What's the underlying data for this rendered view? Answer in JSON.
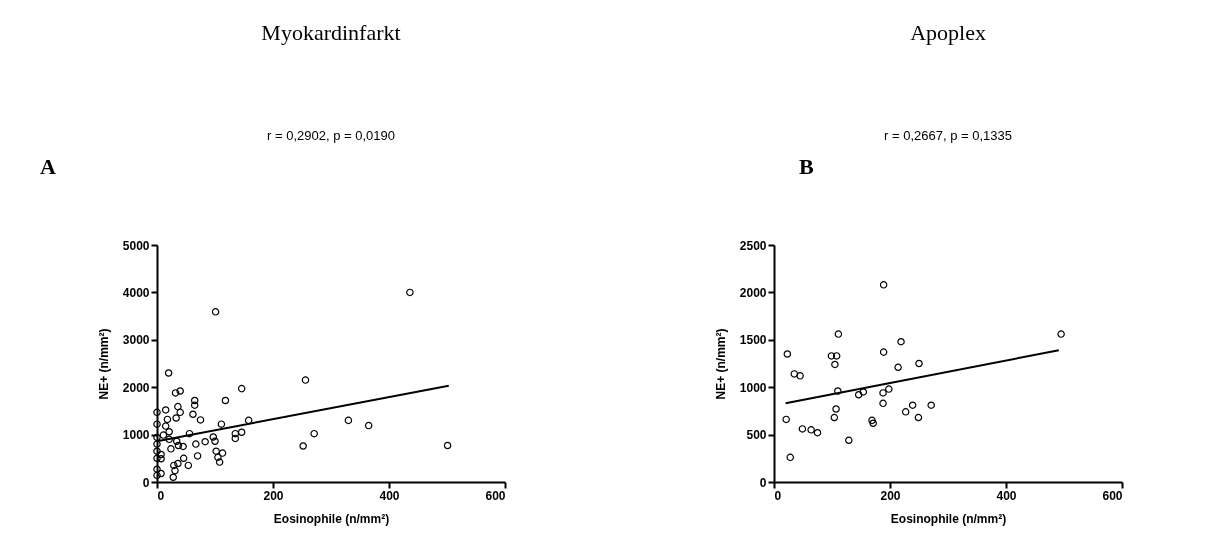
{
  "chart_data": [
    {
      "type": "scatter",
      "title": "Myokardinfarkt",
      "subtitle": "r = 0,2902, p = 0,0190",
      "annotations": [
        "A"
      ],
      "xlabel": "Eosinophile (n/mm²)",
      "ylabel": "NE+ (n/mm²)",
      "xlim": [
        0,
        600
      ],
      "ylim": [
        0,
        5000
      ],
      "xticks": [
        0,
        200,
        400,
        600
      ],
      "yticks": [
        0,
        1000,
        2000,
        3000,
        4000,
        5000
      ],
      "grid": false,
      "series": [
        {
          "marker": "circle",
          "color": "#000000",
          "x": [
            436,
            101,
            20,
            256,
            146,
            40,
            32,
            65,
            118,
            65,
            36,
            15,
            0,
            40,
            62,
            18,
            75,
            158,
            330,
            33,
            365,
            0,
            111,
            15,
            271,
            56,
            146,
            135,
            21,
            11,
            97,
            0,
            135,
            100,
            83,
            67,
            34,
            21,
            0,
            37,
            45,
            252,
            501,
            0,
            24,
            102,
            113,
            7,
            70,
            0,
            105,
            7,
            46,
            108,
            36,
            54,
            29,
            31,
            0,
            7,
            0,
            28
          ],
          "values": [
            4000,
            3590,
            2300,
            2150,
            1970,
            1920,
            1880,
            1720,
            1720,
            1620,
            1590,
            1520,
            1470,
            1470,
            1430,
            1320,
            1310,
            1300,
            1300,
            1350,
            1190,
            1220,
            1220,
            1180,
            1020,
            1020,
            1050,
            1020,
            1060,
            990,
            950,
            940,
            920,
            860,
            850,
            800,
            860,
            900,
            800,
            770,
            750,
            760,
            770,
            650,
            700,
            650,
            610,
            580,
            550,
            500,
            520,
            490,
            500,
            420,
            390,
            350,
            350,
            240,
            270,
            180,
            140,
            100
          ]
        },
        {
          "type": "line",
          "color": "#000000",
          "x": [
            0,
            503
          ],
          "values": [
            860,
            2030
          ]
        }
      ]
    },
    {
      "type": "scatter",
      "title": "Apoplex",
      "subtitle": "r = 0,2667, p = 0,1335",
      "annotations": [
        "B"
      ],
      "xlabel": "Eosinophile (n/mm²)",
      "ylabel": "NE+ (n/mm²)",
      "xlim": [
        0,
        600
      ],
      "ylim": [
        0,
        2500
      ],
      "xticks": [
        0,
        200,
        400,
        600
      ],
      "yticks": [
        0,
        500,
        1000,
        1500,
        2000,
        2500
      ],
      "grid": false,
      "series": [
        {
          "marker": "circle",
          "color": "#000000",
          "x": [
            189,
            111,
            495,
            219,
            23,
            189,
            99,
            108,
            105,
            214,
            250,
            35,
            45,
            198,
            110,
            154,
            146,
            188,
            188,
            239,
            271,
            107,
            227,
            249,
            104,
            21,
            169,
            171,
            49,
            64,
            75,
            129,
            28
          ],
          "values": [
            2080,
            1560,
            1560,
            1480,
            1350,
            1370,
            1330,
            1330,
            1240,
            1210,
            1250,
            1140,
            1120,
            980,
            960,
            950,
            920,
            940,
            830,
            810,
            810,
            770,
            740,
            680,
            680,
            660,
            650,
            620,
            560,
            550,
            520,
            440,
            260
          ]
        },
        {
          "type": "line",
          "color": "#000000",
          "x": [
            20,
            491
          ],
          "values": [
            830,
            1390
          ]
        }
      ]
    }
  ]
}
